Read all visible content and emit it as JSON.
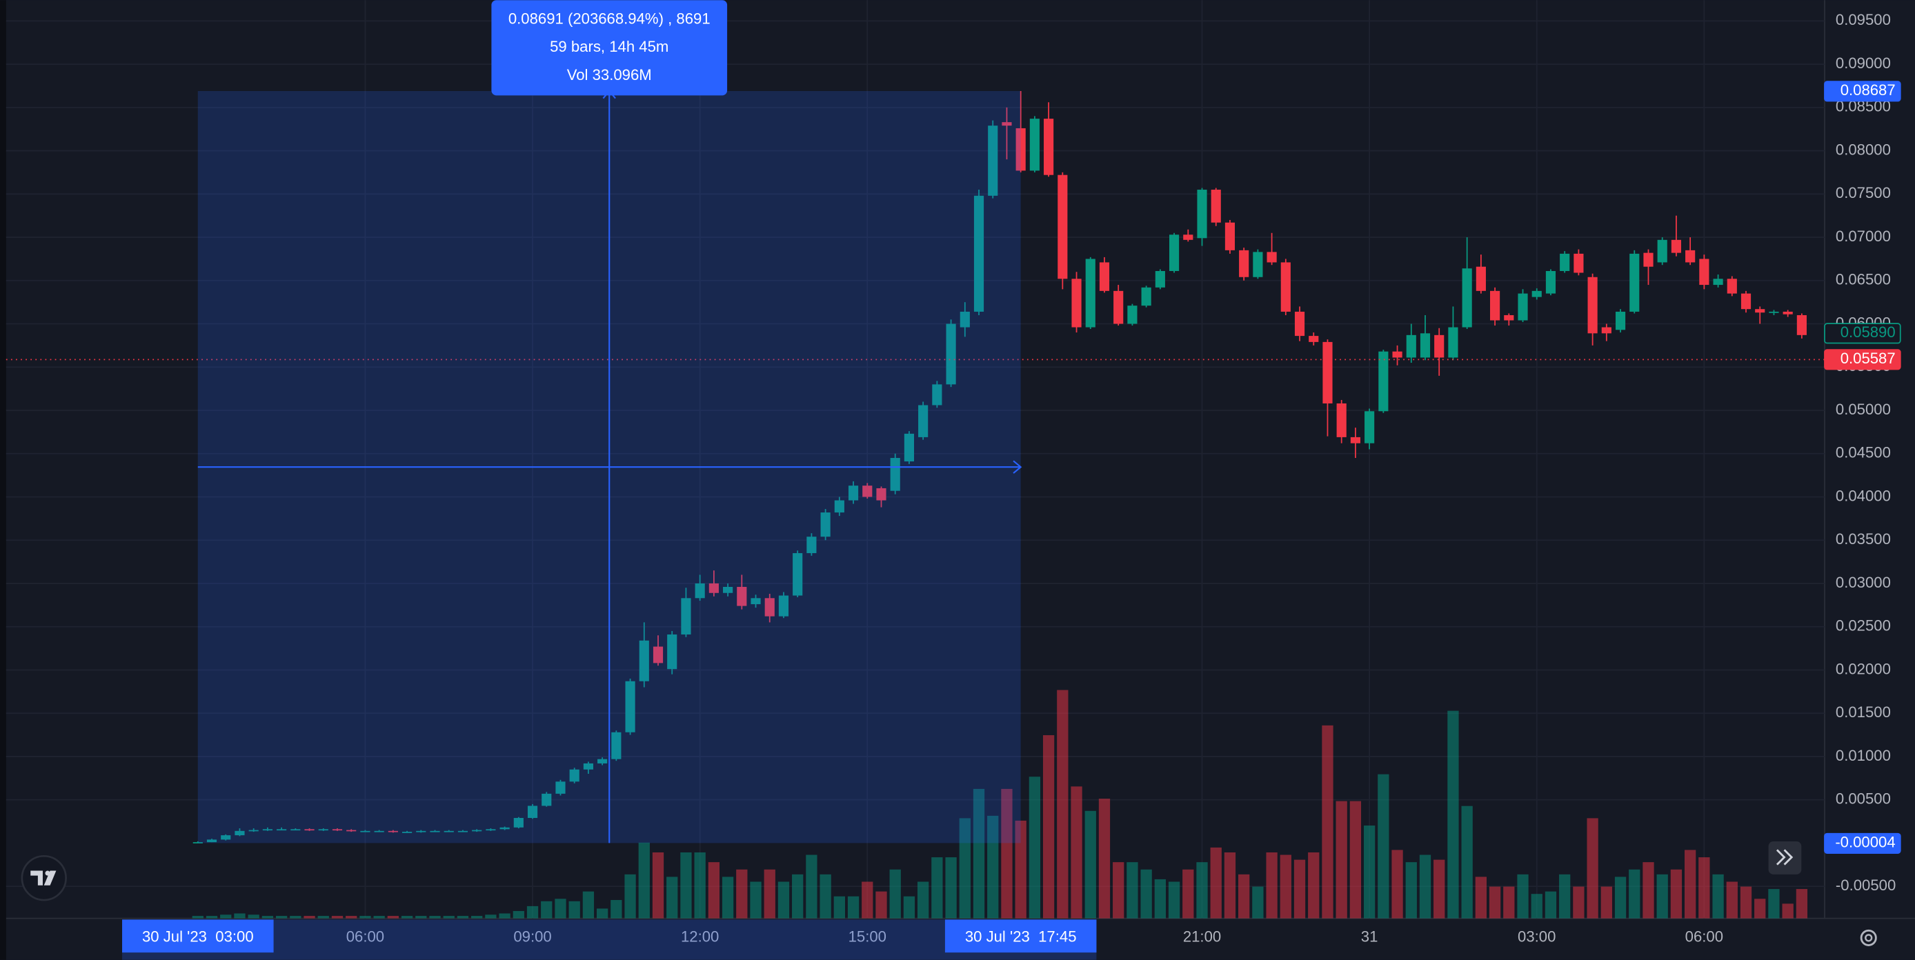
{
  "chart_data": {
    "type": "candlestick",
    "categories": [
      "30 Jul '23  03:00",
      null,
      null,
      null,
      null,
      null,
      null,
      null,
      null,
      null,
      null,
      null,
      "06:00",
      null,
      null,
      null,
      null,
      null,
      null,
      null,
      null,
      null,
      null,
      null,
      "09:00",
      null,
      null,
      null,
      null,
      null,
      null,
      null,
      null,
      null,
      null,
      null,
      "12:00",
      null,
      null,
      null,
      null,
      null,
      null,
      null,
      null,
      null,
      null,
      null,
      "15:00",
      null,
      null,
      null,
      null,
      null,
      null,
      null,
      null,
      null,
      null,
      "30 Jul '23  17:45",
      null,
      null,
      null,
      null,
      null,
      null,
      null,
      null,
      null,
      null,
      null,
      null,
      "21:00",
      null,
      null,
      null,
      null,
      null,
      null,
      null,
      null,
      null,
      null,
      null,
      "31",
      null,
      null,
      null,
      null,
      null,
      null,
      null,
      null,
      null,
      null,
      null,
      "03:00",
      null,
      null,
      null,
      null,
      null,
      null,
      null,
      null,
      null,
      null,
      null,
      "06:00",
      null,
      null,
      null,
      null,
      null,
      null,
      null
    ],
    "ohlc": [
      [
        0.0,
        0.0002,
        0.0,
        0.0001
      ],
      [
        0.0001,
        0.0005,
        0.0001,
        0.0004
      ],
      [
        0.0004,
        0.001,
        0.0003,
        0.0009
      ],
      [
        0.0009,
        0.0017,
        0.0008,
        0.0014
      ],
      [
        0.0014,
        0.0017,
        0.0013,
        0.0015
      ],
      [
        0.0015,
        0.0018,
        0.0014,
        0.0016
      ],
      [
        0.0016,
        0.0018,
        0.0015,
        0.0016
      ],
      [
        0.0016,
        0.0017,
        0.0015,
        0.0016
      ],
      [
        0.0016,
        0.0017,
        0.0014,
        0.0015
      ],
      [
        0.0015,
        0.0017,
        0.0014,
        0.0016
      ],
      [
        0.0016,
        0.0017,
        0.0014,
        0.0015
      ],
      [
        0.0015,
        0.0016,
        0.0013,
        0.0014
      ],
      [
        0.0014,
        0.0015,
        0.0013,
        0.0014
      ],
      [
        0.0014,
        0.0015,
        0.0013,
        0.0014
      ],
      [
        0.0014,
        0.0015,
        0.0012,
        0.0013
      ],
      [
        0.0013,
        0.0014,
        0.0012,
        0.0013
      ],
      [
        0.0013,
        0.0015,
        0.0012,
        0.0014
      ],
      [
        0.0014,
        0.0015,
        0.0013,
        0.0014
      ],
      [
        0.0014,
        0.0015,
        0.0013,
        0.0014
      ],
      [
        0.0014,
        0.0015,
        0.0013,
        0.0014
      ],
      [
        0.0014,
        0.0016,
        0.0013,
        0.0015
      ],
      [
        0.0015,
        0.0017,
        0.0014,
        0.0016
      ],
      [
        0.0016,
        0.0019,
        0.0015,
        0.0018
      ],
      [
        0.0018,
        0.003,
        0.0017,
        0.0029
      ],
      [
        0.0029,
        0.0045,
        0.0028,
        0.0043
      ],
      [
        0.0043,
        0.0059,
        0.0042,
        0.0057
      ],
      [
        0.0057,
        0.0073,
        0.0055,
        0.0071
      ],
      [
        0.0071,
        0.0087,
        0.0069,
        0.0085
      ],
      [
        0.0085,
        0.0094,
        0.008,
        0.0092
      ],
      [
        0.0092,
        0.0099,
        0.009,
        0.0097
      ],
      [
        0.0097,
        0.013,
        0.0095,
        0.0128
      ],
      [
        0.0128,
        0.019,
        0.0125,
        0.0187
      ],
      [
        0.0187,
        0.0255,
        0.018,
        0.0234
      ],
      [
        0.0227,
        0.024,
        0.0205,
        0.0208
      ],
      [
        0.0201,
        0.0245,
        0.0195,
        0.0241
      ],
      [
        0.0241,
        0.0295,
        0.0238,
        0.0283
      ],
      [
        0.0283,
        0.031,
        0.028,
        0.03
      ],
      [
        0.03,
        0.0315,
        0.0285,
        0.0289
      ],
      [
        0.0289,
        0.03,
        0.0285,
        0.0296
      ],
      [
        0.0296,
        0.031,
        0.027,
        0.0274
      ],
      [
        0.0276,
        0.0287,
        0.0272,
        0.0283
      ],
      [
        0.0283,
        0.0288,
        0.0255,
        0.0262
      ],
      [
        0.0262,
        0.029,
        0.026,
        0.0286
      ],
      [
        0.0286,
        0.0338,
        0.0284,
        0.0335
      ],
      [
        0.0335,
        0.0358,
        0.0332,
        0.0354
      ],
      [
        0.0354,
        0.0386,
        0.035,
        0.0382
      ],
      [
        0.0382,
        0.04,
        0.0378,
        0.0396
      ],
      [
        0.0396,
        0.0418,
        0.0392,
        0.0413
      ],
      [
        0.0413,
        0.0416,
        0.0398,
        0.04
      ],
      [
        0.041,
        0.0412,
        0.0388,
        0.0396
      ],
      [
        0.0407,
        0.045,
        0.0403,
        0.0445
      ],
      [
        0.0441,
        0.0476,
        0.0438,
        0.0473
      ],
      [
        0.0469,
        0.051,
        0.0466,
        0.0506
      ],
      [
        0.0506,
        0.0534,
        0.0503,
        0.053
      ],
      [
        0.053,
        0.0605,
        0.0527,
        0.06
      ],
      [
        0.0596,
        0.0625,
        0.0585,
        0.0614
      ],
      [
        0.0614,
        0.0755,
        0.061,
        0.0748
      ],
      [
        0.0748,
        0.0835,
        0.0745,
        0.0829
      ],
      [
        0.0833,
        0.085,
        0.079,
        0.0829
      ],
      [
        0.0826,
        0.0869,
        0.0775,
        0.0777
      ],
      [
        0.0777,
        0.084,
        0.0775,
        0.0837
      ],
      [
        0.0837,
        0.0856,
        0.077,
        0.0772
      ],
      [
        0.0772,
        0.0775,
        0.064,
        0.0652
      ],
      [
        0.0652,
        0.066,
        0.059,
        0.0596
      ],
      [
        0.0596,
        0.0677,
        0.0594,
        0.0675
      ],
      [
        0.0671,
        0.0677,
        0.0636,
        0.0638
      ],
      [
        0.0638,
        0.0645,
        0.0598,
        0.06
      ],
      [
        0.06,
        0.0623,
        0.0598,
        0.0621
      ],
      [
        0.0621,
        0.0644,
        0.0619,
        0.0642
      ],
      [
        0.0642,
        0.0663,
        0.064,
        0.0661
      ],
      [
        0.0661,
        0.0705,
        0.0659,
        0.0703
      ],
      [
        0.0703,
        0.0709,
        0.0695,
        0.0697
      ],
      [
        0.0699,
        0.0757,
        0.069,
        0.0755
      ],
      [
        0.0755,
        0.0757,
        0.0713,
        0.0717
      ],
      [
        0.0717,
        0.072,
        0.0681,
        0.0685
      ],
      [
        0.0685,
        0.0688,
        0.065,
        0.0654
      ],
      [
        0.0654,
        0.0686,
        0.0652,
        0.0683
      ],
      [
        0.0683,
        0.0705,
        0.0668,
        0.0671
      ],
      [
        0.0671,
        0.0675,
        0.061,
        0.0614
      ],
      [
        0.0614,
        0.062,
        0.058,
        0.0586
      ],
      [
        0.0586,
        0.059,
        0.0575,
        0.0579
      ],
      [
        0.0579,
        0.0582,
        0.047,
        0.0508
      ],
      [
        0.0508,
        0.0512,
        0.0462,
        0.0469
      ],
      [
        0.0469,
        0.048,
        0.0445,
        0.0462
      ],
      [
        0.0462,
        0.0502,
        0.0455,
        0.0499
      ],
      [
        0.0499,
        0.057,
        0.0497,
        0.0568
      ],
      [
        0.0568,
        0.0575,
        0.0552,
        0.0561
      ],
      [
        0.0561,
        0.06,
        0.0555,
        0.0587
      ],
      [
        0.0561,
        0.061,
        0.0558,
        0.0589
      ],
      [
        0.0587,
        0.0595,
        0.054,
        0.0561
      ],
      [
        0.0561,
        0.062,
        0.0558,
        0.0596
      ],
      [
        0.0596,
        0.07,
        0.0594,
        0.0664
      ],
      [
        0.0666,
        0.068,
        0.0635,
        0.0638
      ],
      [
        0.0638,
        0.0642,
        0.0598,
        0.0604
      ],
      [
        0.061,
        0.0612,
        0.0598,
        0.0604
      ],
      [
        0.0604,
        0.064,
        0.0602,
        0.0635
      ],
      [
        0.0631,
        0.0641,
        0.0628,
        0.0638
      ],
      [
        0.0635,
        0.0663,
        0.0633,
        0.0661
      ],
      [
        0.0661,
        0.0684,
        0.0659,
        0.0681
      ],
      [
        0.0681,
        0.0686,
        0.0656,
        0.0659
      ],
      [
        0.0654,
        0.0658,
        0.0575,
        0.0589
      ],
      [
        0.0596,
        0.06,
        0.058,
        0.0589
      ],
      [
        0.0593,
        0.0617,
        0.059,
        0.0614
      ],
      [
        0.0614,
        0.0685,
        0.0612,
        0.0681
      ],
      [
        0.0682,
        0.0686,
        0.0645,
        0.0666
      ],
      [
        0.0671,
        0.07,
        0.0668,
        0.0697
      ],
      [
        0.0697,
        0.0725,
        0.0678,
        0.0682
      ],
      [
        0.0685,
        0.07,
        0.0668,
        0.0671
      ],
      [
        0.0675,
        0.068,
        0.064,
        0.0645
      ],
      [
        0.0645,
        0.0657,
        0.0642,
        0.0652
      ],
      [
        0.0652,
        0.0655,
        0.0632,
        0.0635
      ],
      [
        0.0635,
        0.0638,
        0.0613,
        0.0617
      ],
      [
        0.0617,
        0.062,
        0.06,
        0.0613
      ],
      [
        0.0613,
        0.0616,
        0.061,
        0.0614
      ],
      [
        0.0614,
        0.0616,
        0.0608,
        0.0611
      ],
      [
        0.061,
        0.0612,
        0.0583,
        0.0587
      ]
    ],
    "volumes": [
      0.2,
      0.2,
      0.3,
      0.4,
      0.3,
      0.2,
      0.2,
      0.2,
      0.2,
      0.2,
      0.2,
      0.2,
      0.2,
      0.2,
      0.2,
      0.2,
      0.2,
      0.2,
      0.2,
      0.2,
      0.2,
      0.3,
      0.4,
      0.6,
      1.0,
      1.4,
      1.6,
      1.4,
      2.2,
      0.8,
      1.5,
      3.6,
      6.2,
      5.4,
      3.4,
      5.4,
      5.4,
      4.6,
      3.4,
      4.0,
      3.0,
      4.0,
      3.0,
      3.6,
      5.2,
      3.6,
      1.8,
      1.8,
      3.0,
      2.2,
      4.0,
      1.8,
      3.0,
      5.0,
      5.0,
      8.2,
      10.6,
      8.4,
      10.6,
      8.0,
      11.6,
      15.0,
      18.7,
      10.8,
      8.8,
      9.8,
      4.6,
      4.6,
      4.0,
      3.2,
      3.0,
      4.0,
      4.6,
      5.8,
      5.4,
      3.6,
      2.6,
      5.4,
      5.2,
      4.8,
      5.4,
      15.8,
      9.6,
      9.6,
      7.6,
      11.8,
      5.6,
      4.6,
      5.2,
      4.8,
      17.0,
      9.2,
      3.4,
      2.6,
      2.6,
      3.6,
      2.0,
      2.2,
      3.6,
      2.6,
      8.2,
      2.6,
      3.4,
      4.0,
      4.6,
      3.6,
      4.0,
      5.6,
      5.0,
      3.6,
      3.0,
      2.6,
      1.6,
      2.4,
      1.2,
      2.4
    ],
    "up_color": "#089981",
    "down_color": "#f23645",
    "ylim": [
      -0.0087,
      0.0974
    ],
    "yticks": [
      {
        "value": 0.095,
        "label": "0.09500"
      },
      {
        "value": 0.09,
        "label": "0.09000"
      },
      {
        "value": 0.085,
        "label": "0.08500"
      },
      {
        "value": 0.08,
        "label": "0.08000"
      },
      {
        "value": 0.075,
        "label": "0.07500"
      },
      {
        "value": 0.07,
        "label": "0.07000"
      },
      {
        "value": 0.065,
        "label": "0.06500"
      },
      {
        "value": 0.06,
        "label": "0.06000"
      },
      {
        "value": 0.055,
        "label": "0.05500"
      },
      {
        "value": 0.05,
        "label": "0.05000"
      },
      {
        "value": 0.045,
        "label": "0.04500"
      },
      {
        "value": 0.04,
        "label": "0.04000"
      },
      {
        "value": 0.035,
        "label": "0.03500"
      },
      {
        "value": 0.03,
        "label": "0.03000"
      },
      {
        "value": 0.025,
        "label": "0.02500"
      },
      {
        "value": 0.02,
        "label": "0.02000"
      },
      {
        "value": 0.015,
        "label": "0.01500"
      },
      {
        "value": 0.01,
        "label": "0.01000"
      },
      {
        "value": 0.005,
        "label": "0.00500"
      },
      {
        "value": -0.005,
        "label": "-0.00500"
      }
    ],
    "grid": true,
    "price_labels": [
      {
        "value": 0.08687,
        "color": "#2962ff"
      },
      {
        "value": 0.0589,
        "label": "0.05890",
        "color": "#089981",
        "outlined": true
      },
      {
        "value": 0.05587,
        "color": "#f23645",
        "line": true
      },
      {
        "value": -4e-05,
        "color": "#2962ff"
      }
    ],
    "measure": {
      "lines": [
        "0.08691 (203668.94%) , 8691",
        "59 bars, 14h 45m",
        "Vol 33.096M"
      ],
      "color": "#2962ff"
    }
  }
}
